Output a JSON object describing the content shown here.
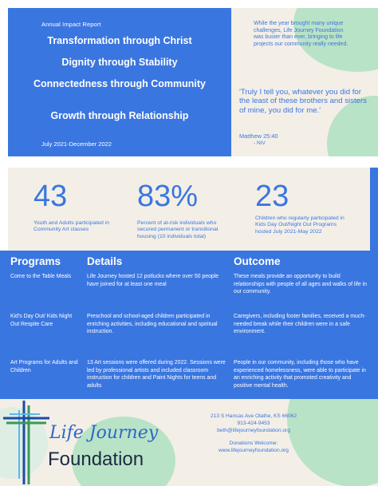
{
  "hero": {
    "kicker": "Annual Impact Report",
    "pillars": [
      "Transformation through Christ",
      "Dignity through Stability",
      "Connectedness through Community",
      "Growth through Relationship"
    ],
    "dates": "July 2021-December 2022"
  },
  "intro": {
    "text": "While the year brought many unique challenges, Life Journey Foundation was busier than ever, bringing to life projects our community really needed.",
    "quote": "'Truly I tell you, whatever you did for the least of these brothers and sisters of mine, you did for me.'",
    "citation": "Matthew 25:40",
    "version": "- NIV"
  },
  "stats": [
    {
      "number": "43",
      "description": "Youth and Adults participated in Community Art classes"
    },
    {
      "number": "83%",
      "description": "Percent of at-risk individuals who secured permanent or transitional housing (10 individuals total)"
    },
    {
      "number": "23",
      "description": "Children who regularly participated in Kids Day Out/Night Out Programs hosted July 2021-May 2022"
    }
  ],
  "table": {
    "headers": [
      "Programs",
      "Details",
      "Outcome"
    ],
    "rows": [
      {
        "program": "Come to the Table Meals",
        "details": "Life Journey hosted 12 potlucks where over 50 people have joined for at least one meal",
        "outcome": "These meals provide an opportunity to build relationships with people of all ages and walks of life in our community."
      },
      {
        "program": "Kid's Day Out/ Kids Night Out Respite Care",
        "details": "Preschool and school-aged children participated in enriching activities, including educational and spiritual instruction.",
        "outcome": "Caregivers, including foster families, received a much-needed break while their children were in a safe environment."
      },
      {
        "program": "Art Programs for Adults and Children",
        "details": "13 Art sessions were offered during 2022. Sessions were led by professional artists and included classroom instruction for children and Paint Nights for teens and adults",
        "outcome": "People in our community, including those who have experienced homelessness, were able to participate in an enriching activity that promoted creativity and positive mental health."
      }
    ]
  },
  "footer": {
    "logo_line1": "Life Journey",
    "logo_line2": "Foundation",
    "address": "213 S Hansas Ave Olathe, KS 66062",
    "phone": "913-424-9453",
    "email": "beth@lifejourneyfoundation.org",
    "donations": "Donations Welcome:",
    "website": "www.lifejourneyfoundation.org"
  },
  "colors": {
    "brand_blue": "#3a76e0",
    "cream": "#f3efe7",
    "mint": "#b9e3c6",
    "dark_navy": "#1e2a44"
  }
}
